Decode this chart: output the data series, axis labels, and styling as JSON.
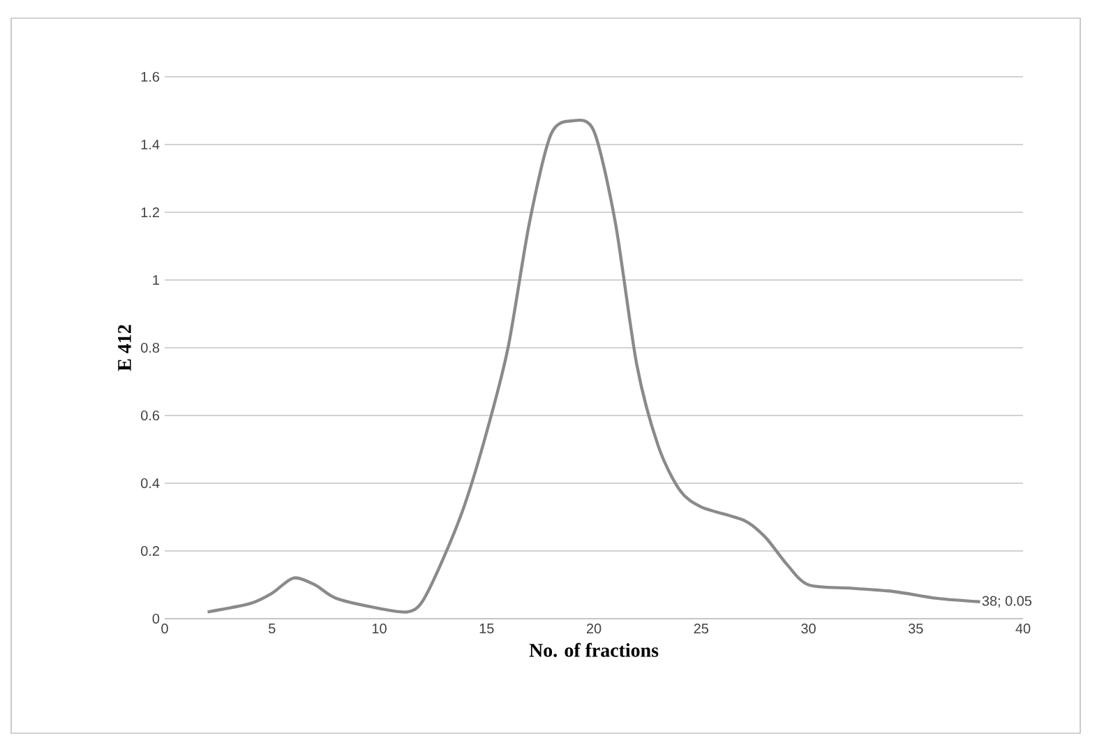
{
  "chart_data": {
    "type": "line",
    "xlabel": "No. of fractions",
    "ylabel": "E 412",
    "x": [
      2,
      4,
      5,
      6,
      7,
      8,
      10,
      11.3,
      12,
      13,
      14,
      15,
      16,
      17,
      18,
      19,
      20,
      21,
      22,
      23,
      24,
      25,
      27,
      28,
      29,
      30,
      32,
      34,
      36,
      38
    ],
    "values": [
      0.02,
      0.045,
      0.075,
      0.12,
      0.1,
      0.06,
      0.03,
      0.02,
      0.05,
      0.18,
      0.34,
      0.55,
      0.8,
      1.17,
      1.43,
      1.47,
      1.44,
      1.17,
      0.75,
      0.51,
      0.38,
      0.33,
      0.29,
      0.24,
      0.16,
      0.1,
      0.09,
      0.08,
      0.06,
      0.05
    ],
    "color": "#8a8a8a",
    "marker": "none",
    "line_style": "solid",
    "grid": "y",
    "xlim": [
      0,
      40
    ],
    "xticks": [
      0,
      5,
      10,
      15,
      20,
      25,
      30,
      35,
      40
    ],
    "ylim": [
      0,
      1.6
    ],
    "yticks": [
      0,
      0.2,
      0.4,
      0.6,
      0.8,
      1,
      1.2,
      1.4,
      1.6
    ],
    "annotations": [
      {
        "text": "38; 0.05",
        "x": 38,
        "y": 0.05
      }
    ]
  }
}
